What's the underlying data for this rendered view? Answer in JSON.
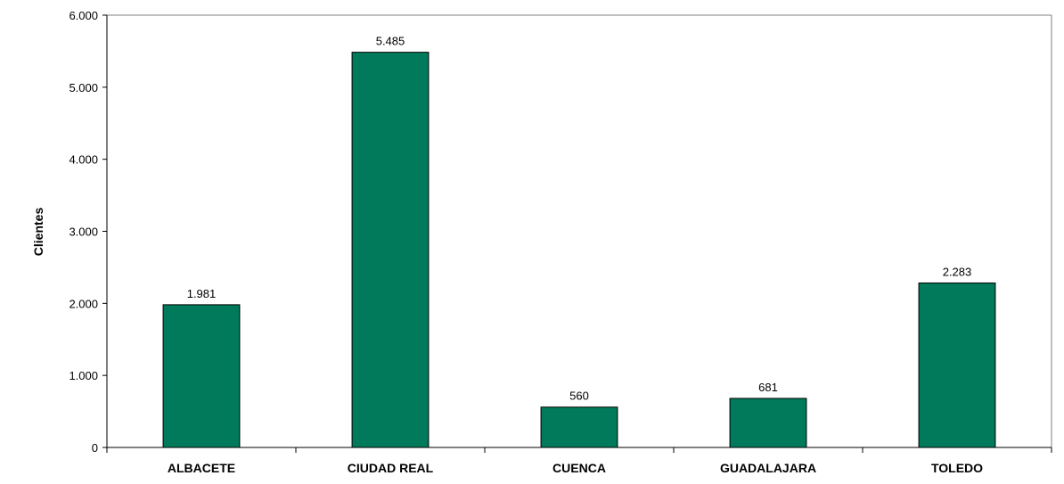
{
  "chart_data": {
    "type": "bar",
    "categories": [
      "ALBACETE",
      "CIUDAD REAL",
      "CUENCA",
      "GUADALAJARA",
      "TOLEDO"
    ],
    "values": [
      1981,
      5485,
      560,
      681,
      2283
    ],
    "data_labels": [
      "1.981",
      "5.485",
      "560",
      "681",
      "2.283"
    ],
    "title": "",
    "xlabel": "",
    "ylabel": "Clientes",
    "ylim": [
      0,
      6000
    ],
    "yticks": [
      0,
      1000,
      2000,
      3000,
      4000,
      5000,
      6000
    ],
    "ytick_labels": [
      "0",
      "1.000",
      "2.000",
      "3.000",
      "4.000",
      "5.000",
      "6.000"
    ],
    "grid": false,
    "legend": "none",
    "bar_color": "#007A5A",
    "bar_edge_color": "#000000"
  }
}
